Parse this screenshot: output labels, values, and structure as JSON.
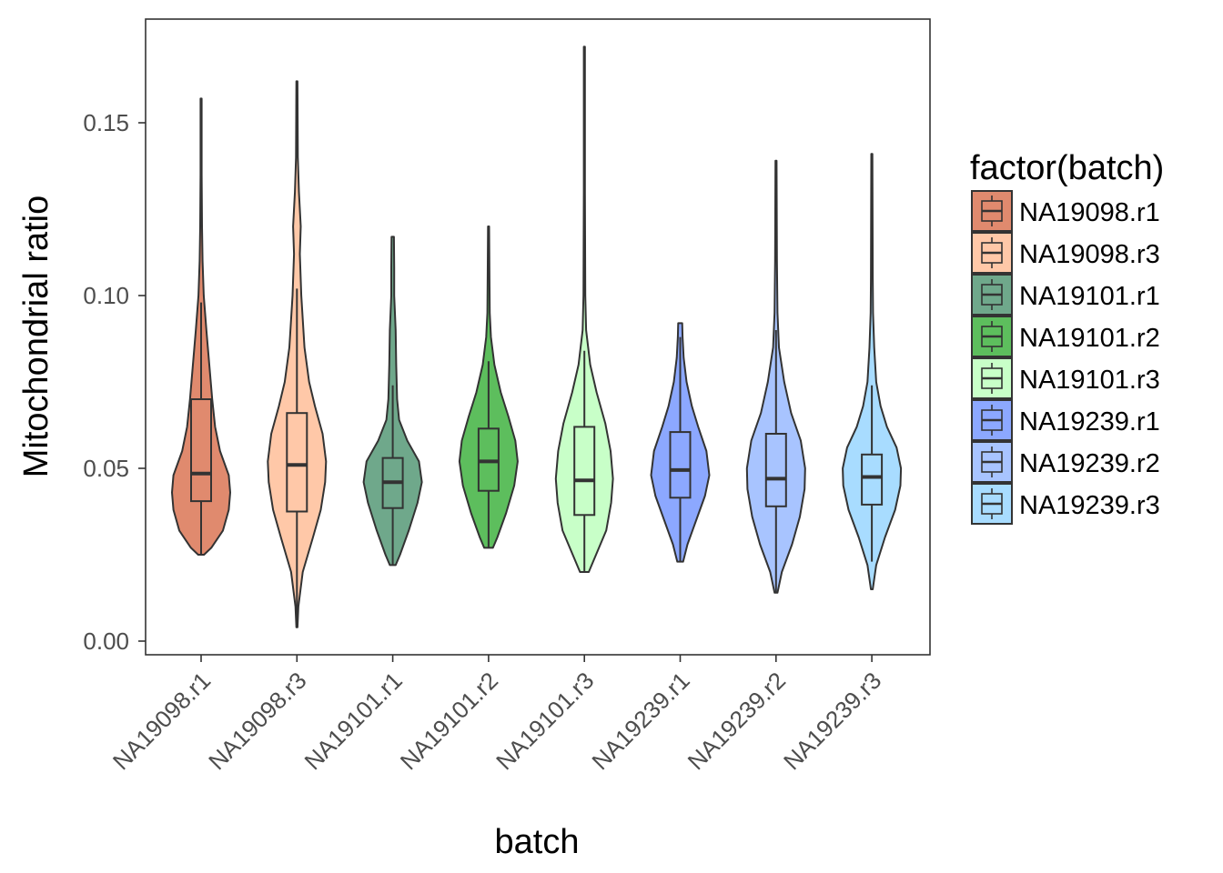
{
  "chart_data": {
    "type": "violin",
    "xlabel": "batch",
    "ylabel": "Mitochondrial ratio",
    "ylim": [
      -0.004,
      0.18
    ],
    "yticks": [
      0.0,
      0.05,
      0.1,
      0.15
    ],
    "ytick_labels": [
      "0.00",
      "0.05",
      "0.10",
      "0.15"
    ],
    "categories": [
      "NA19098.r1",
      "NA19098.r3",
      "NA19101.r1",
      "NA19101.r2",
      "NA19101.r3",
      "NA19239.r1",
      "NA19239.r2",
      "NA19239.r3"
    ],
    "colors": [
      "#E08A6E",
      "#FFC8A8",
      "#6FA88B",
      "#5DBE5D",
      "#C8FFC8",
      "#8CA8FF",
      "#A8C4FF",
      "#A8DCFF"
    ],
    "grid": false,
    "legend": {
      "title": "factor(batch)",
      "position": "right",
      "entries": [
        "NA19098.r1",
        "NA19098.r3",
        "NA19101.r1",
        "NA19101.r2",
        "NA19101.r3",
        "NA19239.r1",
        "NA19239.r2",
        "NA19239.r3"
      ]
    },
    "series": [
      {
        "name": "NA19098.r1",
        "min": 0.025,
        "max": 0.157,
        "q1": 0.0405,
        "median": 0.0485,
        "q3": 0.07,
        "whisker_low": 0.025,
        "whisker_high": 0.098,
        "density": [
          [
            0.025,
            0.1
          ],
          [
            0.027,
            0.35
          ],
          [
            0.032,
            0.75
          ],
          [
            0.038,
            0.95
          ],
          [
            0.043,
            1.0
          ],
          [
            0.048,
            0.95
          ],
          [
            0.055,
            0.65
          ],
          [
            0.062,
            0.48
          ],
          [
            0.07,
            0.38
          ],
          [
            0.08,
            0.28
          ],
          [
            0.09,
            0.18
          ],
          [
            0.1,
            0.09
          ],
          [
            0.11,
            0.05
          ],
          [
            0.12,
            0.03
          ],
          [
            0.135,
            0.02
          ],
          [
            0.157,
            0.02
          ]
        ]
      },
      {
        "name": "NA19098.r3",
        "min": 0.004,
        "max": 0.162,
        "q1": 0.0375,
        "median": 0.051,
        "q3": 0.066,
        "whisker_low": 0.006,
        "whisker_high": 0.102,
        "density": [
          [
            0.004,
            0.02
          ],
          [
            0.01,
            0.05
          ],
          [
            0.02,
            0.2
          ],
          [
            0.03,
            0.55
          ],
          [
            0.038,
            0.82
          ],
          [
            0.046,
            0.97
          ],
          [
            0.052,
            1.0
          ],
          [
            0.06,
            0.88
          ],
          [
            0.068,
            0.62
          ],
          [
            0.075,
            0.42
          ],
          [
            0.085,
            0.26
          ],
          [
            0.1,
            0.15
          ],
          [
            0.112,
            0.1
          ],
          [
            0.12,
            0.13
          ],
          [
            0.13,
            0.07
          ],
          [
            0.14,
            0.03
          ],
          [
            0.162,
            0.02
          ]
        ]
      },
      {
        "name": "NA19101.r1",
        "min": 0.022,
        "max": 0.117,
        "q1": 0.0385,
        "median": 0.046,
        "q3": 0.053,
        "whisker_low": 0.022,
        "whisker_high": 0.074,
        "density": [
          [
            0.022,
            0.1
          ],
          [
            0.025,
            0.25
          ],
          [
            0.032,
            0.55
          ],
          [
            0.04,
            0.85
          ],
          [
            0.046,
            1.0
          ],
          [
            0.052,
            0.9
          ],
          [
            0.058,
            0.5
          ],
          [
            0.064,
            0.22
          ],
          [
            0.07,
            0.15
          ],
          [
            0.08,
            0.12
          ],
          [
            0.09,
            0.1
          ],
          [
            0.1,
            0.05
          ],
          [
            0.108,
            0.05
          ],
          [
            0.117,
            0.04
          ]
        ]
      },
      {
        "name": "NA19101.r2",
        "min": 0.027,
        "max": 0.12,
        "q1": 0.0435,
        "median": 0.052,
        "q3": 0.0615,
        "whisker_low": 0.027,
        "whisker_high": 0.081,
        "density": [
          [
            0.027,
            0.15
          ],
          [
            0.03,
            0.3
          ],
          [
            0.037,
            0.6
          ],
          [
            0.045,
            0.88
          ],
          [
            0.052,
            1.0
          ],
          [
            0.058,
            0.92
          ],
          [
            0.065,
            0.68
          ],
          [
            0.072,
            0.42
          ],
          [
            0.08,
            0.2
          ],
          [
            0.088,
            0.08
          ],
          [
            0.095,
            0.04
          ],
          [
            0.105,
            0.03
          ],
          [
            0.12,
            0.02
          ]
        ]
      },
      {
        "name": "NA19101.r3",
        "min": 0.02,
        "max": 0.172,
        "q1": 0.0365,
        "median": 0.0465,
        "q3": 0.062,
        "whisker_low": 0.02,
        "whisker_high": 0.084,
        "density": [
          [
            0.02,
            0.15
          ],
          [
            0.025,
            0.4
          ],
          [
            0.032,
            0.75
          ],
          [
            0.04,
            0.92
          ],
          [
            0.047,
            0.98
          ],
          [
            0.055,
            0.9
          ],
          [
            0.063,
            0.72
          ],
          [
            0.072,
            0.42
          ],
          [
            0.08,
            0.2
          ],
          [
            0.09,
            0.06
          ],
          [
            0.1,
            0.03
          ],
          [
            0.13,
            0.02
          ],
          [
            0.172,
            0.02
          ]
        ]
      },
      {
        "name": "NA19239.r1",
        "min": 0.023,
        "max": 0.092,
        "q1": 0.0415,
        "median": 0.0495,
        "q3": 0.0605,
        "whisker_low": 0.023,
        "whisker_high": 0.088,
        "density": [
          [
            0.023,
            0.1
          ],
          [
            0.028,
            0.25
          ],
          [
            0.035,
            0.55
          ],
          [
            0.042,
            0.85
          ],
          [
            0.048,
            1.0
          ],
          [
            0.055,
            0.9
          ],
          [
            0.062,
            0.62
          ],
          [
            0.068,
            0.4
          ],
          [
            0.075,
            0.22
          ],
          [
            0.082,
            0.12
          ],
          [
            0.088,
            0.08
          ],
          [
            0.092,
            0.07
          ]
        ]
      },
      {
        "name": "NA19239.r2",
        "min": 0.014,
        "max": 0.139,
        "q1": 0.039,
        "median": 0.047,
        "q3": 0.06,
        "whisker_low": 0.014,
        "whisker_high": 0.09,
        "density": [
          [
            0.014,
            0.05
          ],
          [
            0.02,
            0.2
          ],
          [
            0.028,
            0.55
          ],
          [
            0.036,
            0.82
          ],
          [
            0.044,
            0.98
          ],
          [
            0.05,
            1.0
          ],
          [
            0.058,
            0.85
          ],
          [
            0.066,
            0.52
          ],
          [
            0.075,
            0.28
          ],
          [
            0.085,
            0.1
          ],
          [
            0.095,
            0.05
          ],
          [
            0.11,
            0.03
          ],
          [
            0.139,
            0.02
          ]
        ]
      },
      {
        "name": "NA19239.r3",
        "min": 0.015,
        "max": 0.141,
        "q1": 0.0395,
        "median": 0.0475,
        "q3": 0.054,
        "whisker_low": 0.023,
        "whisker_high": 0.074,
        "density": [
          [
            0.015,
            0.03
          ],
          [
            0.022,
            0.15
          ],
          [
            0.03,
            0.45
          ],
          [
            0.038,
            0.8
          ],
          [
            0.045,
            0.98
          ],
          [
            0.05,
            1.0
          ],
          [
            0.056,
            0.85
          ],
          [
            0.062,
            0.52
          ],
          [
            0.068,
            0.3
          ],
          [
            0.075,
            0.15
          ],
          [
            0.085,
            0.08
          ],
          [
            0.095,
            0.04
          ],
          [
            0.105,
            0.03
          ],
          [
            0.141,
            0.02
          ]
        ]
      }
    ]
  }
}
